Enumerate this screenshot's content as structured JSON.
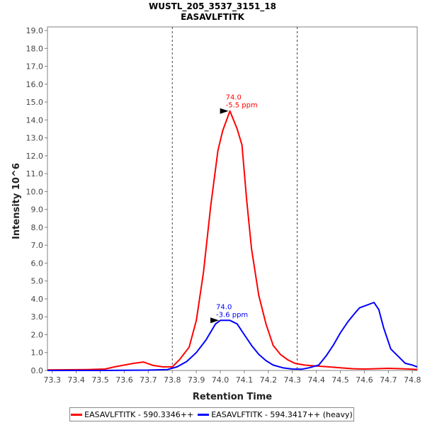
{
  "chart_data": {
    "type": "line",
    "title": "WUSTL_205_3537_3151_18",
    "subtitle": "EASAVLFTITK",
    "xlabel": "Retention Time",
    "ylabel": "Intensity 10^6",
    "xlim": [
      73.28,
      74.82
    ],
    "ylim": [
      0,
      19.2
    ],
    "x_ticks": [
      "73.3",
      "73.4",
      "73.5",
      "73.6",
      "73.7",
      "73.8",
      "73.9",
      "74.0",
      "74.1",
      "74.2",
      "74.3",
      "74.4",
      "74.5",
      "74.6",
      "74.7",
      "74.8"
    ],
    "y_ticks": [
      "0.0",
      "1.0",
      "2.0",
      "3.0",
      "4.0",
      "5.0",
      "6.0",
      "7.0",
      "8.0",
      "9.0",
      "10.0",
      "11.0",
      "12.0",
      "13.0",
      "14.0",
      "15.0",
      "16.0",
      "17.0",
      "18.0",
      "19.0"
    ],
    "grid": false,
    "integration_bounds": [
      73.8,
      74.32
    ],
    "legend_position": "bottom",
    "series": [
      {
        "name": "EASAVLFTITK - 590.3346++",
        "color": "#ff0000",
        "x": [
          73.28,
          73.45,
          73.52,
          73.56,
          73.6,
          73.64,
          73.68,
          73.72,
          73.76,
          73.8,
          73.83,
          73.87,
          73.9,
          73.93,
          73.96,
          73.99,
          74.01,
          74.04,
          74.07,
          74.09,
          74.11,
          74.13,
          74.16,
          74.19,
          74.22,
          74.25,
          74.28,
          74.31,
          74.35,
          74.4,
          74.45,
          74.5,
          74.55,
          74.6,
          74.65,
          74.7,
          74.75,
          74.8,
          74.82
        ],
        "y": [
          0.03,
          0.05,
          0.08,
          0.2,
          0.3,
          0.4,
          0.47,
          0.28,
          0.2,
          0.2,
          0.6,
          1.3,
          2.8,
          5.5,
          9.2,
          12.3,
          13.4,
          14.5,
          13.5,
          12.6,
          9.5,
          6.8,
          4.2,
          2.6,
          1.4,
          0.9,
          0.6,
          0.4,
          0.3,
          0.25,
          0.2,
          0.15,
          0.1,
          0.08,
          0.1,
          0.12,
          0.1,
          0.07,
          0.05
        ]
      },
      {
        "name": "EASAVLFTITK - 594.3417++ (heavy)",
        "color": "#0000ff",
        "x": [
          73.28,
          73.5,
          73.7,
          73.78,
          73.82,
          73.86,
          73.9,
          73.94,
          73.98,
          74.0,
          74.04,
          74.07,
          74.1,
          74.13,
          74.16,
          74.19,
          74.22,
          74.26,
          74.3,
          74.34,
          74.37,
          74.41,
          74.44,
          74.47,
          74.5,
          74.53,
          74.56,
          74.58,
          74.6,
          74.64,
          74.66,
          74.68,
          74.71,
          74.74,
          74.77,
          74.8,
          74.82
        ],
        "y": [
          0.0,
          0.0,
          0.02,
          0.05,
          0.2,
          0.5,
          1.0,
          1.7,
          2.6,
          2.8,
          2.8,
          2.6,
          2.0,
          1.4,
          0.9,
          0.55,
          0.3,
          0.15,
          0.08,
          0.07,
          0.15,
          0.3,
          0.8,
          1.4,
          2.1,
          2.7,
          3.2,
          3.5,
          3.6,
          3.8,
          3.4,
          2.4,
          1.2,
          0.8,
          0.4,
          0.3,
          0.2
        ]
      }
    ],
    "annotations": [
      {
        "series": 0,
        "x": 74.04,
        "y": 14.5,
        "lines": [
          "74.0",
          "-5.5 ppm"
        ]
      },
      {
        "series": 1,
        "x": 74.0,
        "y": 2.8,
        "lines": [
          "74.0",
          "-3.6 ppm"
        ]
      }
    ]
  }
}
